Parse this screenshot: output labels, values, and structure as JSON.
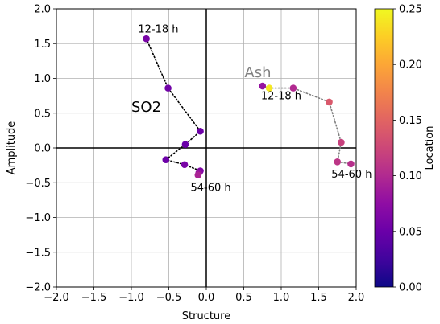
{
  "chart_data": {
    "type": "scatter",
    "xlabel": "Structure",
    "ylabel": "Amplitude",
    "xlim": [
      -2.0,
      2.0
    ],
    "ylim": [
      -2.0,
      2.0
    ],
    "x_ticks": [
      "−2.0",
      "−1.5",
      "−1.0",
      "−0.5",
      "0.0",
      "0.5",
      "1.0",
      "1.5",
      "2.0"
    ],
    "y_ticks": [
      "−2.0",
      "−1.5",
      "−1.0",
      "−0.5",
      "0.0",
      "0.5",
      "1.0",
      "1.5",
      "2.0"
    ],
    "grid": true,
    "colorbar": {
      "label": "Location",
      "colormap": "plasma",
      "range": [
        0.0,
        0.25
      ],
      "ticks": [
        "0.00",
        "0.05",
        "0.10",
        "0.15",
        "0.20",
        "0.25"
      ]
    },
    "series": [
      {
        "name": "SO2",
        "line_color": "#000000",
        "label_color": "#000000",
        "points": [
          {
            "x": -0.8,
            "y": 1.57,
            "c": 0.06
          },
          {
            "x": -0.51,
            "y": 0.86,
            "c": 0.055
          },
          {
            "x": -0.08,
            "y": 0.24,
            "c": 0.052
          },
          {
            "x": -0.28,
            "y": 0.05,
            "c": 0.05
          },
          {
            "x": -0.54,
            "y": -0.17,
            "c": 0.052
          },
          {
            "x": -0.29,
            "y": -0.24,
            "c": 0.06
          },
          {
            "x": -0.08,
            "y": -0.33,
            "c": 0.065
          },
          {
            "x": -0.1,
            "y": -0.36,
            "c": 0.08
          },
          {
            "x": -0.11,
            "y": -0.39,
            "c": 0.095
          }
        ]
      },
      {
        "name": "Ash",
        "line_color": "#808080",
        "label_color": "#808080",
        "points": [
          {
            "x": 0.75,
            "y": 0.89,
            "c": 0.08
          },
          {
            "x": 0.84,
            "y": 0.86,
            "c": 0.24
          },
          {
            "x": 1.16,
            "y": 0.86,
            "c": 0.1
          },
          {
            "x": 1.64,
            "y": 0.66,
            "c": 0.14
          },
          {
            "x": 1.8,
            "y": 0.08,
            "c": 0.12
          },
          {
            "x": 1.75,
            "y": -0.2,
            "c": 0.11
          },
          {
            "x": 1.93,
            "y": -0.23,
            "c": 0.105
          }
        ]
      }
    ],
    "labels": [
      {
        "text": "SO2",
        "x": -1.0,
        "y": 0.52,
        "kind": "group",
        "color": "#000000"
      },
      {
        "text": "Ash",
        "x": 0.51,
        "y": 1.02,
        "kind": "group",
        "color": "#808080"
      }
    ],
    "annotations": [
      {
        "text": "12-18 h",
        "x": -0.91,
        "y": 1.66
      },
      {
        "text": "54-60 h",
        "x": -0.21,
        "y": -0.62
      },
      {
        "text": "12-18 h",
        "x": 0.73,
        "y": 0.7
      },
      {
        "text": "54-60 h",
        "x": 1.67,
        "y": -0.43
      }
    ]
  }
}
